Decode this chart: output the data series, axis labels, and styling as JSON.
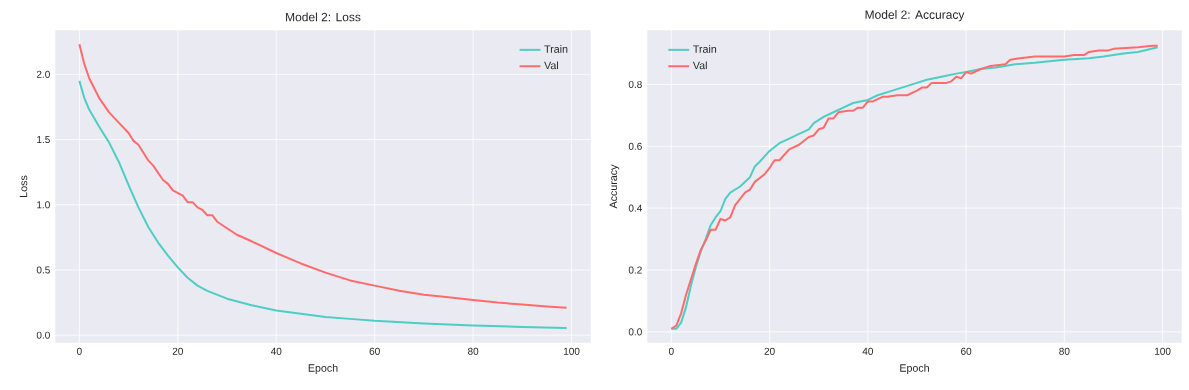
{
  "chart_data": [
    {
      "type": "line",
      "title": "Model 2: Loss",
      "xlabel": "Epoch",
      "ylabel": "Loss",
      "grid": true,
      "legend": "top right",
      "xlim": [
        -4.95,
        103.95
      ],
      "ylim": [
        -0.06,
        2.34
      ],
      "xticks": [
        0,
        20,
        40,
        60,
        80,
        100
      ],
      "yticks": [
        {
          "value": 0,
          "label": "0.0"
        },
        0.5,
        {
          "value": 1,
          "label": "1.0"
        },
        1.5,
        {
          "value": 2,
          "label": "2.0"
        }
      ],
      "series": [
        {
          "name": "Train",
          "color": "#4ecdc4",
          "x": [
            0,
            1,
            2,
            4,
            6,
            8,
            10,
            12,
            14,
            16,
            18,
            20,
            22,
            24,
            26,
            28,
            30,
            35,
            40,
            45,
            50,
            55,
            60,
            70,
            80,
            90,
            99
          ],
          "values": [
            1.95,
            1.82,
            1.73,
            1.6,
            1.48,
            1.33,
            1.15,
            0.98,
            0.83,
            0.71,
            0.61,
            0.52,
            0.44,
            0.38,
            0.34,
            0.31,
            0.28,
            0.23,
            0.19,
            0.165,
            0.14,
            0.125,
            0.11,
            0.09,
            0.075,
            0.063,
            0.055
          ]
        },
        {
          "name": "Val",
          "color": "#ff6b6b",
          "x": [
            0,
            1,
            2,
            4,
            6,
            8,
            10,
            11,
            12,
            14,
            15,
            17,
            18,
            19,
            21,
            22,
            23,
            24,
            25,
            26,
            27,
            28,
            30,
            32,
            35,
            40,
            45,
            50,
            55,
            60,
            65,
            70,
            75,
            80,
            85,
            90,
            95,
            99
          ],
          "values": [
            2.23,
            2.08,
            1.97,
            1.82,
            1.71,
            1.63,
            1.55,
            1.49,
            1.46,
            1.34,
            1.3,
            1.19,
            1.16,
            1.11,
            1.07,
            1.02,
            1.02,
            0.98,
            0.96,
            0.92,
            0.92,
            0.87,
            0.82,
            0.77,
            0.72,
            0.63,
            0.55,
            0.48,
            0.42,
            0.38,
            0.34,
            0.31,
            0.29,
            0.27,
            0.25,
            0.235,
            0.22,
            0.21
          ]
        }
      ]
    },
    {
      "type": "line",
      "title": "Model 2: Accuracy",
      "xlabel": "Epoch",
      "ylabel": "Accuracy",
      "grid": true,
      "legend": "top left",
      "xlim": [
        -4.95,
        103.95
      ],
      "ylim": [
        -0.036,
        0.976
      ],
      "xticks": [
        0,
        20,
        40,
        60,
        80,
        100
      ],
      "yticks": [
        {
          "value": 0,
          "label": "0.0"
        },
        0.2,
        0.4,
        0.6,
        0.8
      ],
      "series": [
        {
          "name": "Train",
          "color": "#4ecdc4",
          "x": [
            0,
            1,
            2,
            3,
            4,
            5,
            6,
            7,
            8,
            9,
            10,
            11,
            12,
            14,
            16,
            17,
            18,
            20,
            22,
            24,
            26,
            28,
            29,
            31,
            33,
            35,
            37,
            40,
            42,
            45,
            50,
            52,
            55,
            58,
            60,
            63,
            66,
            70,
            74,
            77,
            80,
            85,
            88,
            92,
            95,
            99
          ],
          "values": [
            0.01,
            0.01,
            0.03,
            0.08,
            0.15,
            0.21,
            0.26,
            0.3,
            0.345,
            0.37,
            0.39,
            0.43,
            0.45,
            0.47,
            0.5,
            0.535,
            0.55,
            0.585,
            0.61,
            0.625,
            0.64,
            0.655,
            0.675,
            0.695,
            0.71,
            0.725,
            0.74,
            0.75,
            0.765,
            0.78,
            0.805,
            0.815,
            0.825,
            0.835,
            0.84,
            0.85,
            0.855,
            0.865,
            0.87,
            0.875,
            0.88,
            0.885,
            0.89,
            0.9,
            0.905,
            0.92
          ]
        },
        {
          "name": "Val",
          "color": "#ff6b6b",
          "x": [
            0,
            1,
            2,
            3,
            4,
            5,
            6,
            7,
            8,
            9,
            10,
            11,
            12,
            13,
            15,
            16,
            17,
            19,
            20,
            21,
            22,
            24,
            26,
            28,
            29,
            30,
            31,
            32,
            33,
            34,
            36,
            37,
            38,
            39,
            40,
            41,
            43,
            44,
            46,
            48,
            50,
            51,
            52,
            53,
            56,
            57,
            58,
            59,
            60,
            61,
            63,
            65,
            68,
            69,
            71,
            74,
            80,
            82,
            84,
            85,
            87,
            89,
            90,
            95,
            98,
            99
          ],
          "values": [
            0.01,
            0.02,
            0.06,
            0.12,
            0.17,
            0.22,
            0.265,
            0.295,
            0.33,
            0.33,
            0.365,
            0.36,
            0.37,
            0.41,
            0.45,
            0.46,
            0.485,
            0.51,
            0.53,
            0.555,
            0.555,
            0.59,
            0.605,
            0.63,
            0.635,
            0.655,
            0.66,
            0.69,
            0.69,
            0.71,
            0.715,
            0.715,
            0.725,
            0.725,
            0.745,
            0.745,
            0.76,
            0.76,
            0.765,
            0.765,
            0.78,
            0.79,
            0.79,
            0.805,
            0.805,
            0.81,
            0.825,
            0.82,
            0.84,
            0.835,
            0.85,
            0.86,
            0.865,
            0.88,
            0.885,
            0.89,
            0.89,
            0.895,
            0.895,
            0.905,
            0.91,
            0.91,
            0.915,
            0.92,
            0.925,
            0.925
          ]
        }
      ]
    }
  ]
}
